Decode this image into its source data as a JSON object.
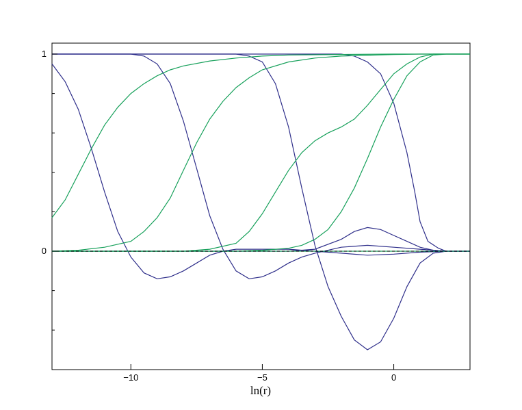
{
  "chart_data": {
    "type": "line",
    "title": "",
    "xlabel": "ln(r)",
    "ylabel": "",
    "xlim": [
      -13.0,
      2.9
    ],
    "ylim": [
      -0.6,
      1.0
    ],
    "x_ticks": [
      {
        "value": -10,
        "label": "−10"
      },
      {
        "value": -5,
        "label": "−5"
      },
      {
        "value": 0,
        "label": "0"
      }
    ],
    "y_ticks": [
      {
        "value": 1,
        "label": "1"
      },
      {
        "value": 0,
        "label": "0"
      }
    ],
    "y_minor_ticks": [
      0.8,
      0.6,
      0.4,
      0.2,
      -0.2,
      -0.4
    ],
    "grid": false,
    "legend": "none",
    "reference_line": {
      "y": 0,
      "style": "dashed",
      "color": "#000000"
    },
    "colors": {
      "blue": "#2e2e8a",
      "green": "#16a05a",
      "dashed": "#000000"
    },
    "series": [
      {
        "color": "#2e2e8a",
        "points": [
          [
            -13,
            0.95
          ],
          [
            -12.5,
            0.86
          ],
          [
            -12,
            0.72
          ],
          [
            -11.5,
            0.52
          ],
          [
            -11,
            0.3
          ],
          [
            -10.5,
            0.1
          ],
          [
            -10,
            -0.03
          ],
          [
            -9.5,
            -0.11
          ],
          [
            -9,
            -0.14
          ],
          [
            -8.5,
            -0.13
          ],
          [
            -8,
            -0.1
          ],
          [
            -7.5,
            -0.06
          ],
          [
            -7,
            -0.02
          ],
          [
            -6.5,
            0
          ],
          [
            -6,
            0.01
          ],
          [
            -5,
            0.01
          ],
          [
            -4,
            0.01
          ],
          [
            -3,
            0
          ],
          [
            -2,
            -0.01
          ],
          [
            -1,
            -0.02
          ],
          [
            0,
            -0.015
          ],
          [
            1,
            -0.005
          ],
          [
            2,
            0
          ],
          [
            2.9,
            0
          ]
        ]
      },
      {
        "color": "#2e2e8a",
        "points": [
          [
            -13,
            1
          ],
          [
            -10,
            1
          ],
          [
            -9.5,
            0.99
          ],
          [
            -9,
            0.95
          ],
          [
            -8.5,
            0.85
          ],
          [
            -8,
            0.66
          ],
          [
            -7.5,
            0.42
          ],
          [
            -7,
            0.18
          ],
          [
            -6.5,
            0.01
          ],
          [
            -6,
            -0.1
          ],
          [
            -5.5,
            -0.14
          ],
          [
            -5,
            -0.13
          ],
          [
            -4.5,
            -0.1
          ],
          [
            -4,
            -0.06
          ],
          [
            -3.5,
            -0.03
          ],
          [
            -3,
            -0.01
          ],
          [
            -2,
            0.02
          ],
          [
            -1,
            0.03
          ],
          [
            0,
            0.02
          ],
          [
            1,
            0.01
          ],
          [
            2,
            0
          ],
          [
            2.9,
            0
          ]
        ]
      },
      {
        "color": "#2e2e8a",
        "points": [
          [
            -13,
            1
          ],
          [
            -6,
            1
          ],
          [
            -5.5,
            0.99
          ],
          [
            -5,
            0.96
          ],
          [
            -4.5,
            0.85
          ],
          [
            -4,
            0.63
          ],
          [
            -3.5,
            0.32
          ],
          [
            -3,
            0.03
          ],
          [
            -2.5,
            -0.18
          ],
          [
            -2,
            -0.33
          ],
          [
            -1.5,
            -0.45
          ],
          [
            -1,
            -0.5
          ],
          [
            -0.5,
            -0.46
          ],
          [
            0,
            -0.34
          ],
          [
            0.5,
            -0.18
          ],
          [
            1,
            -0.06
          ],
          [
            1.5,
            -0.01
          ],
          [
            2,
            0
          ],
          [
            2.9,
            0
          ]
        ]
      },
      {
        "color": "#2e2e8a",
        "points": [
          [
            -13,
            1
          ],
          [
            -2,
            1
          ],
          [
            -1.5,
            0.99
          ],
          [
            -1,
            0.96
          ],
          [
            -0.5,
            0.9
          ],
          [
            0,
            0.75
          ],
          [
            0.5,
            0.5
          ],
          [
            0.8,
            0.3
          ],
          [
            1,
            0.15
          ],
          [
            1.3,
            0.05
          ],
          [
            1.7,
            0.015
          ],
          [
            2,
            0
          ],
          [
            2.9,
            0
          ]
        ]
      },
      {
        "color": "#2e2e8a",
        "points": [
          [
            -13,
            0
          ],
          [
            -5,
            0
          ],
          [
            -4,
            0
          ],
          [
            -3,
            0.01
          ],
          [
            -2,
            0.06
          ],
          [
            -1.5,
            0.1
          ],
          [
            -1,
            0.12
          ],
          [
            -0.5,
            0.11
          ],
          [
            0,
            0.08
          ],
          [
            0.5,
            0.05
          ],
          [
            1,
            0.02
          ],
          [
            1.5,
            0.005
          ],
          [
            2,
            0
          ],
          [
            2.9,
            0
          ]
        ]
      },
      {
        "color": "#16a05a",
        "points": [
          [
            -13,
            0.17
          ],
          [
            -12.5,
            0.26
          ],
          [
            -12,
            0.39
          ],
          [
            -11.5,
            0.52
          ],
          [
            -11,
            0.64
          ],
          [
            -10.5,
            0.73
          ],
          [
            -10,
            0.8
          ],
          [
            -9.5,
            0.85
          ],
          [
            -9,
            0.89
          ],
          [
            -8.5,
            0.92
          ],
          [
            -8,
            0.94
          ],
          [
            -7,
            0.965
          ],
          [
            -6,
            0.98
          ],
          [
            -5,
            0.99
          ],
          [
            -4,
            0.995
          ],
          [
            -2,
            0.998
          ],
          [
            0,
            1
          ],
          [
            2.9,
            1
          ]
        ]
      },
      {
        "color": "#16a05a",
        "points": [
          [
            -13,
            0
          ],
          [
            -12,
            0.005
          ],
          [
            -11,
            0.02
          ],
          [
            -10,
            0.05
          ],
          [
            -9.5,
            0.1
          ],
          [
            -9,
            0.17
          ],
          [
            -8.5,
            0.27
          ],
          [
            -8,
            0.41
          ],
          [
            -7.5,
            0.55
          ],
          [
            -7,
            0.67
          ],
          [
            -6.5,
            0.76
          ],
          [
            -6,
            0.83
          ],
          [
            -5.5,
            0.88
          ],
          [
            -5,
            0.92
          ],
          [
            -4,
            0.96
          ],
          [
            -3,
            0.98
          ],
          [
            -2,
            0.99
          ],
          [
            0,
            0.998
          ],
          [
            1,
            1
          ],
          [
            2.9,
            1
          ]
        ]
      },
      {
        "color": "#16a05a",
        "points": [
          [
            -13,
            0
          ],
          [
            -8,
            0
          ],
          [
            -7,
            0.01
          ],
          [
            -6,
            0.04
          ],
          [
            -5.5,
            0.1
          ],
          [
            -5,
            0.19
          ],
          [
            -4.5,
            0.3
          ],
          [
            -4,
            0.41
          ],
          [
            -3.5,
            0.5
          ],
          [
            -3,
            0.56
          ],
          [
            -2.5,
            0.6
          ],
          [
            -2,
            0.63
          ],
          [
            -1.5,
            0.67
          ],
          [
            -1,
            0.74
          ],
          [
            -0.5,
            0.82
          ],
          [
            0,
            0.9
          ],
          [
            0.5,
            0.95
          ],
          [
            1,
            0.985
          ],
          [
            1.5,
            1
          ],
          [
            2.9,
            1
          ]
        ]
      },
      {
        "color": "#16a05a",
        "points": [
          [
            -13,
            0
          ],
          [
            -6,
            0
          ],
          [
            -5,
            0.005
          ],
          [
            -4,
            0.015
          ],
          [
            -3.5,
            0.03
          ],
          [
            -3,
            0.06
          ],
          [
            -2.5,
            0.11
          ],
          [
            -2,
            0.2
          ],
          [
            -1.5,
            0.32
          ],
          [
            -1,
            0.47
          ],
          [
            -0.5,
            0.63
          ],
          [
            0,
            0.77
          ],
          [
            0.5,
            0.89
          ],
          [
            1,
            0.96
          ],
          [
            1.5,
            0.995
          ],
          [
            2,
            1
          ],
          [
            2.9,
            1
          ]
        ]
      },
      {
        "color": "#16a05a",
        "points": [
          [
            -13,
            0
          ],
          [
            2.9,
            0
          ]
        ]
      }
    ]
  }
}
